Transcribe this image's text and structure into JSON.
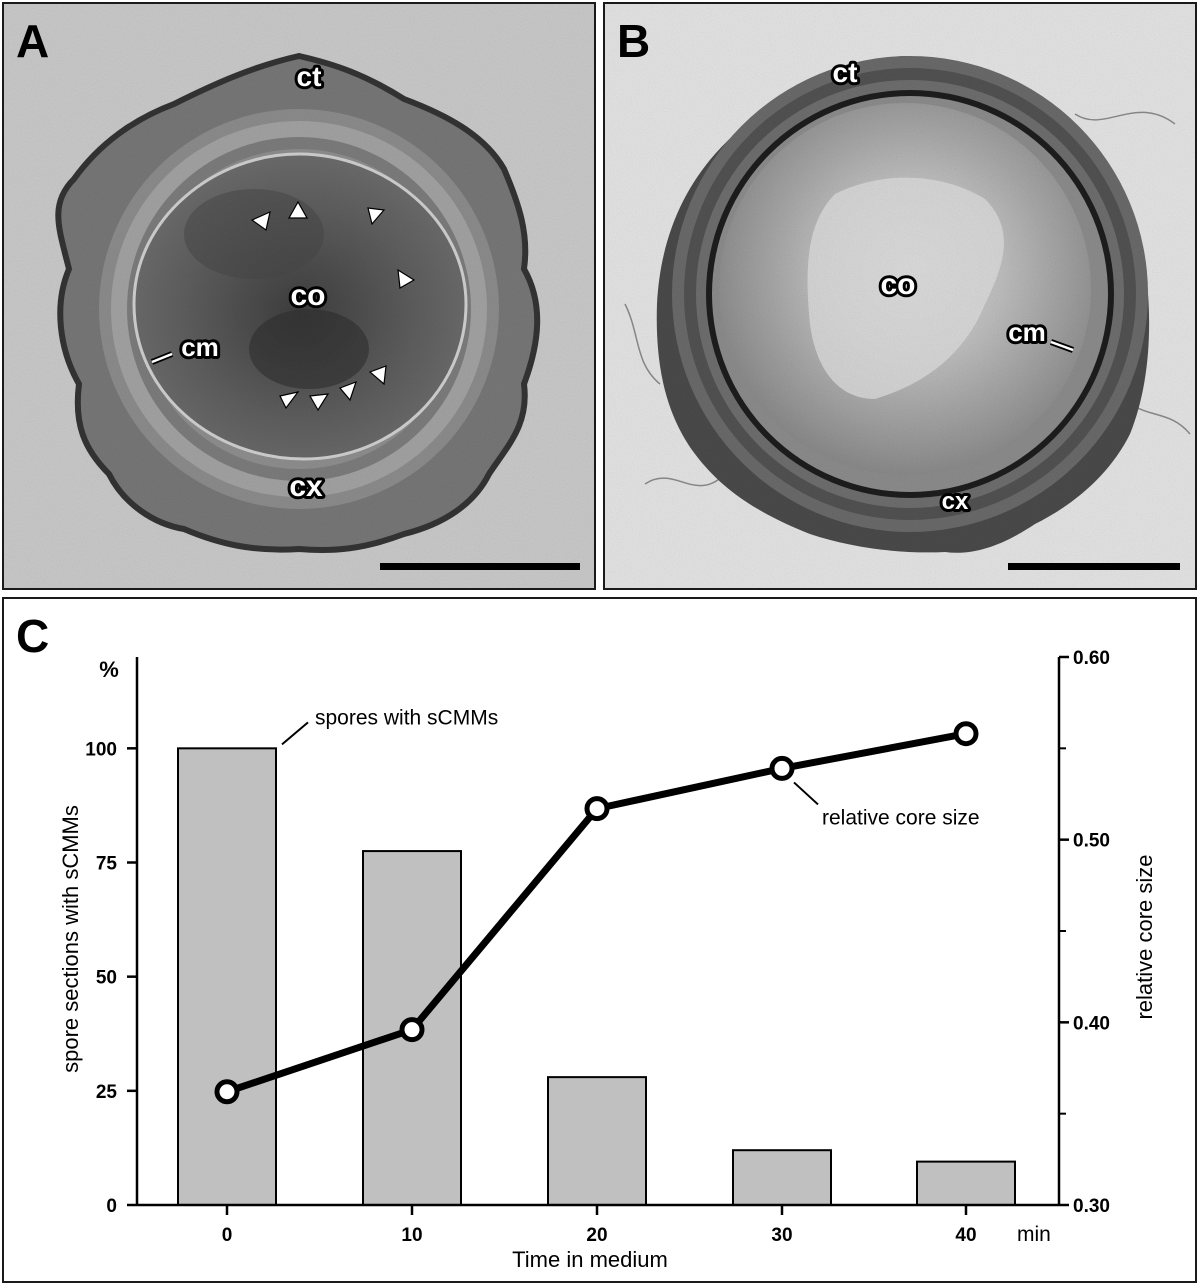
{
  "panels": {
    "a": {
      "letter": "A",
      "labels": {
        "ct": "ct",
        "co": "co",
        "cm": "cm",
        "cx": "cx"
      }
    },
    "b": {
      "letter": "B",
      "labels": {
        "ct": "ct",
        "co": "co",
        "cm": "cm",
        "cx": "cx"
      }
    },
    "c": {
      "letter": "C"
    }
  },
  "chart_data": {
    "type": "bar",
    "x": [
      0,
      10,
      20,
      30,
      40
    ],
    "categories": [
      "0",
      "10",
      "20",
      "30",
      "40"
    ],
    "x_unit": "min",
    "xlabel": "Time in medium",
    "ylabel": "spore sections with sCMMs",
    "y_unit": "%",
    "ylim": [
      0,
      120
    ],
    "yticks": [
      0,
      25,
      50,
      75,
      100
    ],
    "y2label": "relative core size",
    "y2lim": [
      0.3,
      0.6
    ],
    "y2ticks": [
      "0.30",
      "0.40",
      "0.50",
      "0.60"
    ],
    "series": [
      {
        "name": "spores with sCMMs",
        "type": "bar",
        "axis": "left",
        "values": [
          100,
          77.5,
          28,
          12,
          9.5
        ],
        "color": "#c0c0c0"
      },
      {
        "name": "relative core size",
        "type": "line",
        "axis": "right",
        "values": [
          0.362,
          0.396,
          0.517,
          0.539,
          0.558
        ],
        "color": "#000000"
      }
    ],
    "annotations": [
      "spores with sCMMs",
      "relative core size"
    ],
    "grid": false
  }
}
